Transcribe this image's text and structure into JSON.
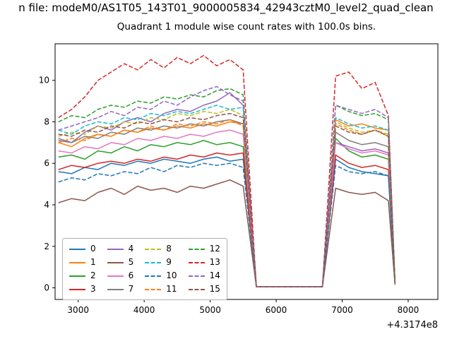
{
  "figure": {
    "suptitle": "n file: modeM0/AS1T05_143T01_9000005834_42943cztM0_level2_quad_clean"
  },
  "chart_data": {
    "type": "line",
    "title": "Quadrant 1 module wise count rates with 100.0s bins.",
    "xlabel": "",
    "ylabel": "",
    "x_offset": "+4.3174e8",
    "xlim": [
      2650,
      8450
    ],
    "ylim": [
      -0.56,
      11.76
    ],
    "xticks": [
      3000,
      4000,
      5000,
      6000,
      7000,
      8000
    ],
    "yticks": [
      0,
      2,
      4,
      6,
      8,
      10
    ],
    "grid": false,
    "legend_position": "lower left",
    "legend_columns": 4,
    "x": [
      2700,
      2900,
      3100,
      3300,
      3500,
      3700,
      3900,
      4100,
      4300,
      4500,
      4700,
      4900,
      5100,
      5300,
      5500,
      5700,
      5900,
      6100,
      6300,
      6500,
      6700,
      6900,
      7100,
      7300,
      7500,
      7700,
      7800
    ],
    "series": [
      {
        "name": "0",
        "color": "#1f77b4",
        "style": "solid",
        "values": [
          5.6,
          5.5,
          5.8,
          5.7,
          6.0,
          5.9,
          6.1,
          6.0,
          6.2,
          6.1,
          6.0,
          6.2,
          6.3,
          6.1,
          6.2,
          0.05,
          0.05,
          0.05,
          0.05,
          0.05,
          0.05,
          6.2,
          5.8,
          5.6,
          5.5,
          5.4,
          0.2
        ]
      },
      {
        "name": "1",
        "color": "#ff7f0e",
        "style": "solid",
        "values": [
          7.0,
          6.8,
          7.2,
          7.4,
          7.3,
          7.6,
          7.5,
          7.7,
          7.6,
          7.8,
          7.7,
          7.9,
          7.8,
          8.0,
          7.9,
          0.05,
          0.05,
          0.05,
          0.05,
          0.05,
          0.05,
          8.1,
          7.8,
          7.9,
          7.7,
          7.6,
          0.25
        ]
      },
      {
        "name": "2",
        "color": "#2ca02c",
        "style": "solid",
        "values": [
          6.3,
          6.4,
          6.2,
          6.6,
          6.5,
          6.8,
          6.6,
          6.9,
          6.8,
          7.0,
          6.9,
          7.1,
          6.9,
          7.0,
          6.8,
          0.05,
          0.05,
          0.05,
          0.05,
          0.05,
          0.05,
          7.2,
          6.6,
          6.3,
          6.4,
          6.2,
          0.2
        ]
      },
      {
        "name": "3",
        "color": "#d62728",
        "style": "solid",
        "values": [
          5.7,
          5.9,
          5.8,
          6.0,
          6.1,
          6.0,
          6.2,
          6.1,
          6.3,
          6.2,
          6.4,
          6.3,
          6.5,
          6.4,
          6.5,
          0.05,
          0.05,
          0.05,
          0.05,
          0.05,
          0.05,
          6.4,
          6.0,
          5.8,
          5.9,
          5.7,
          0.2
        ]
      },
      {
        "name": "4",
        "color": "#9467bd",
        "style": "solid",
        "values": [
          7.2,
          7.0,
          7.5,
          7.8,
          7.6,
          8.0,
          8.2,
          8.0,
          8.4,
          8.6,
          8.5,
          8.8,
          9.0,
          9.4,
          8.8,
          0.05,
          0.05,
          0.05,
          0.05,
          0.05,
          0.05,
          7.0,
          6.8,
          6.6,
          6.7,
          6.5,
          0.2
        ]
      },
      {
        "name": "5",
        "color": "#8c564b",
        "style": "solid",
        "values": [
          4.1,
          4.3,
          4.2,
          4.6,
          4.8,
          4.5,
          4.9,
          4.7,
          4.8,
          4.6,
          4.9,
          4.8,
          5.0,
          5.2,
          4.9,
          0.05,
          0.05,
          0.05,
          0.05,
          0.05,
          0.05,
          4.8,
          4.6,
          4.5,
          4.6,
          4.2,
          0.15
        ]
      },
      {
        "name": "6",
        "color": "#e377c2",
        "style": "solid",
        "values": [
          6.6,
          6.5,
          6.8,
          6.7,
          7.0,
          6.9,
          7.2,
          7.1,
          7.3,
          7.2,
          7.4,
          7.3,
          7.5,
          7.6,
          7.4,
          0.05,
          0.05,
          0.05,
          0.05,
          0.05,
          0.05,
          7.0,
          6.7,
          6.5,
          6.6,
          6.4,
          0.2
        ]
      },
      {
        "name": "7",
        "color": "#7f7f7f",
        "style": "solid",
        "values": [
          7.1,
          7.0,
          7.3,
          7.2,
          7.5,
          7.4,
          7.7,
          7.6,
          7.8,
          7.7,
          7.9,
          7.8,
          8.0,
          8.1,
          7.9,
          0.05,
          0.05,
          0.05,
          0.05,
          0.05,
          0.05,
          7.5,
          7.1,
          6.9,
          7.0,
          6.8,
          0.2
        ]
      },
      {
        "name": "8",
        "color": "#bcbd22",
        "style": "dashed",
        "values": [
          7.3,
          7.5,
          7.4,
          7.8,
          7.7,
          8.0,
          7.9,
          8.2,
          8.1,
          8.4,
          8.3,
          8.5,
          8.4,
          8.6,
          8.3,
          0.05,
          0.05,
          0.05,
          0.05,
          0.05,
          0.05,
          8.0,
          7.7,
          7.5,
          7.6,
          7.4,
          0.2
        ]
      },
      {
        "name": "9",
        "color": "#17becf",
        "style": "dashed",
        "values": [
          7.6,
          7.4,
          7.8,
          8.0,
          7.9,
          8.2,
          8.1,
          8.4,
          8.3,
          8.5,
          8.4,
          8.6,
          8.8,
          8.6,
          8.7,
          0.05,
          0.05,
          0.05,
          0.05,
          0.05,
          0.05,
          8.2,
          7.9,
          7.7,
          7.8,
          7.6,
          0.2
        ]
      },
      {
        "name": "10",
        "color": "#1f77b4",
        "style": "dashed",
        "values": [
          5.1,
          5.3,
          5.2,
          5.5,
          5.4,
          5.6,
          5.5,
          5.8,
          5.6,
          5.9,
          5.8,
          6.0,
          5.9,
          6.0,
          5.8,
          0.05,
          0.05,
          0.05,
          0.05,
          0.05,
          0.05,
          5.9,
          5.6,
          5.5,
          5.6,
          5.4,
          0.2
        ]
      },
      {
        "name": "11",
        "color": "#ff7f0e",
        "style": "dashed",
        "values": [
          7.0,
          7.2,
          7.1,
          7.4,
          7.3,
          7.6,
          7.5,
          7.8,
          7.6,
          7.9,
          7.8,
          8.0,
          7.9,
          8.1,
          7.8,
          0.05,
          0.05,
          0.05,
          0.05,
          0.05,
          0.05,
          7.9,
          7.6,
          7.4,
          7.6,
          7.3,
          0.2
        ]
      },
      {
        "name": "12",
        "color": "#2ca02c",
        "style": "dashed",
        "values": [
          8.0,
          8.3,
          8.2,
          8.6,
          8.8,
          8.7,
          9.0,
          8.9,
          9.2,
          9.1,
          9.3,
          9.2,
          9.5,
          9.6,
          9.3,
          0.05,
          0.05,
          0.05,
          0.05,
          0.05,
          0.05,
          8.8,
          8.5,
          8.3,
          8.4,
          8.1,
          0.25
        ]
      },
      {
        "name": "13",
        "color": "#d62728",
        "style": "dashed",
        "values": [
          8.2,
          8.6,
          9.2,
          10.0,
          10.4,
          10.8,
          10.5,
          11.0,
          10.6,
          11.1,
          10.8,
          11.2,
          10.7,
          11.0,
          10.5,
          0.05,
          0.05,
          0.05,
          0.05,
          0.05,
          0.05,
          10.2,
          10.4,
          9.6,
          9.9,
          8.3,
          0.3
        ]
      },
      {
        "name": "14",
        "color": "#9467bd",
        "style": "dashed",
        "values": [
          7.6,
          7.8,
          8.0,
          8.2,
          8.5,
          8.3,
          8.7,
          8.6,
          9.0,
          8.8,
          9.2,
          9.5,
          9.7,
          9.3,
          9.0,
          0.05,
          0.05,
          0.05,
          0.05,
          0.05,
          0.05,
          8.8,
          8.6,
          8.4,
          8.6,
          8.2,
          0.25
        ]
      },
      {
        "name": "15",
        "color": "#8c564b",
        "style": "dashed",
        "values": [
          7.4,
          7.3,
          7.6,
          7.5,
          7.8,
          7.7,
          8.0,
          7.9,
          8.1,
          8.0,
          8.2,
          8.1,
          8.3,
          8.4,
          8.2,
          0.05,
          0.05,
          0.05,
          0.05,
          0.05,
          0.05,
          7.8,
          7.5,
          7.4,
          7.6,
          7.3,
          0.2
        ]
      }
    ]
  }
}
